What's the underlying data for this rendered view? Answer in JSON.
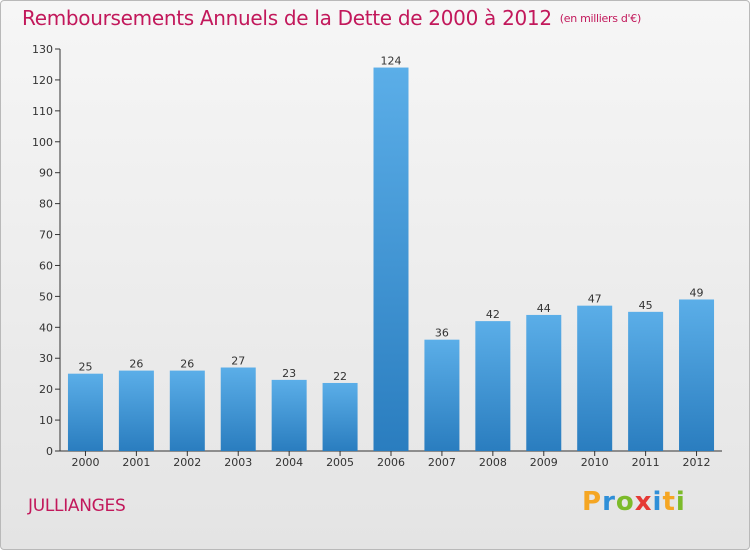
{
  "header": {
    "title": "Remboursements Annuels de la Dette de 2000 à 2012",
    "unit": "(en milliers d'€)"
  },
  "footer": {
    "commune": "JULLIANGES",
    "logo_letters": [
      "P",
      "r",
      "o",
      "x",
      "i",
      "t",
      "i"
    ]
  },
  "colors": {
    "title": "#c2185b",
    "bar_top": "#5baee8",
    "bar_bottom": "#2a7dbf"
  },
  "chart_data": {
    "type": "bar",
    "categories": [
      "2000",
      "2001",
      "2002",
      "2003",
      "2004",
      "2005",
      "2006",
      "2007",
      "2008",
      "2009",
      "2010",
      "2011",
      "2012"
    ],
    "values": [
      25,
      26,
      26,
      27,
      23,
      22,
      124,
      36,
      42,
      44,
      47,
      45,
      49
    ],
    "title": "Remboursements Annuels de la Dette de 2000 à 2012",
    "ylim": [
      0,
      130
    ],
    "yticks": [
      0,
      10,
      20,
      30,
      40,
      50,
      60,
      70,
      80,
      90,
      100,
      110,
      120,
      130
    ],
    "grid": false,
    "legend": "none"
  }
}
